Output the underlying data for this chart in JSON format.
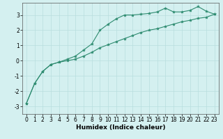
{
  "xlabel": "Humidex (Indice chaleur)",
  "background_color": "#d4f0f0",
  "line_color": "#2d8b6f",
  "grid_color": "#b8dede",
  "xlim": [
    -0.5,
    23.5
  ],
  "ylim": [
    -3.5,
    3.8
  ],
  "yticks": [
    -3,
    -2,
    -1,
    0,
    1,
    2,
    3
  ],
  "xticks": [
    0,
    1,
    2,
    3,
    4,
    5,
    6,
    7,
    8,
    9,
    10,
    11,
    12,
    13,
    14,
    15,
    16,
    17,
    18,
    19,
    20,
    21,
    22,
    23
  ],
  "series1_x": [
    0,
    1,
    2,
    3,
    4,
    5,
    6,
    7,
    8,
    9,
    10,
    11,
    12,
    13,
    14,
    15,
    16,
    17,
    18,
    19,
    20,
    21,
    22,
    23
  ],
  "series1_y": [
    -2.8,
    -1.5,
    -0.7,
    -0.25,
    -0.1,
    0.1,
    0.3,
    0.7,
    1.1,
    2.0,
    2.4,
    2.75,
    3.0,
    3.0,
    3.05,
    3.1,
    3.2,
    3.45,
    3.2,
    3.2,
    3.3,
    3.55,
    3.25,
    3.05
  ],
  "series2_x": [
    0,
    1,
    2,
    3,
    4,
    5,
    6,
    7,
    8,
    9,
    10,
    11,
    12,
    13,
    14,
    15,
    16,
    17,
    18,
    19,
    20,
    21,
    22,
    23
  ],
  "series2_y": [
    -2.8,
    -1.5,
    -0.7,
    -0.25,
    -0.1,
    0.0,
    0.1,
    0.3,
    0.55,
    0.85,
    1.05,
    1.25,
    1.45,
    1.65,
    1.85,
    2.0,
    2.1,
    2.25,
    2.4,
    2.55,
    2.65,
    2.78,
    2.85,
    3.05
  ],
  "marker": "*",
  "markersize": 3,
  "linewidth": 0.8,
  "tick_labelsize": 5.5,
  "xlabel_fontsize": 6.5
}
